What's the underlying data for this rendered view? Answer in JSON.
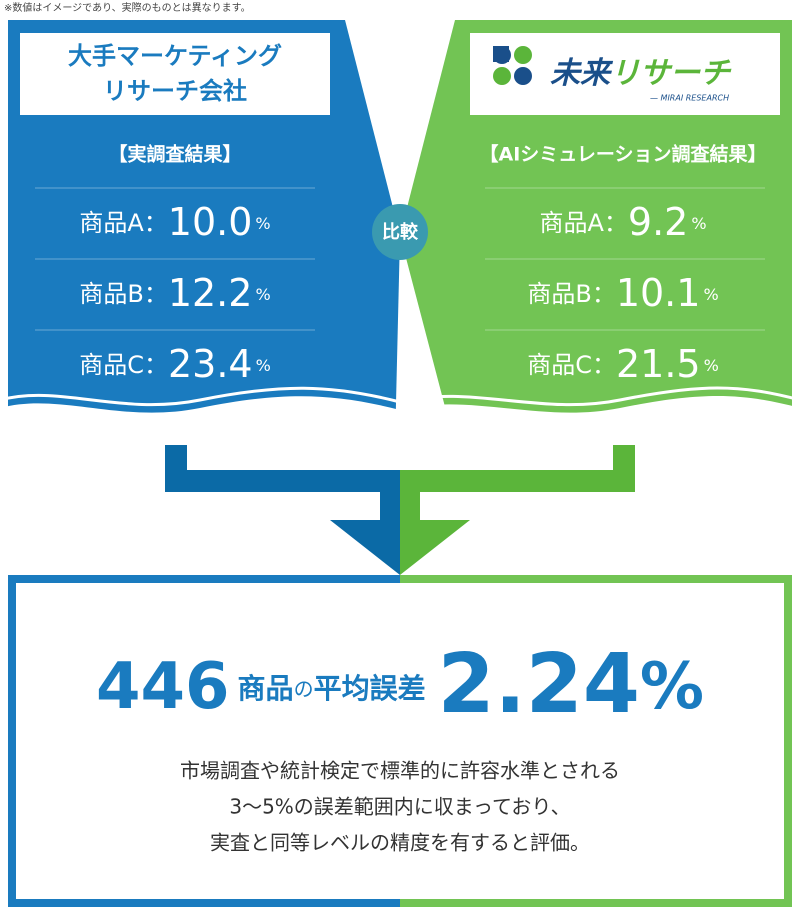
{
  "note": "※数値はイメージであり、実際のものとは異なります。",
  "left": {
    "company": [
      "大手マーケティング",
      "リサーチ会社"
    ],
    "heading": "【実調査結果】",
    "items": [
      {
        "label": "商品A：",
        "value": "10.0",
        "unit": "%"
      },
      {
        "label": "商品B：",
        "value": "12.2",
        "unit": "%"
      },
      {
        "label": "商品C：",
        "value": "23.4",
        "unit": "%"
      }
    ]
  },
  "compare": "比較",
  "right": {
    "logo": {
      "name": [
        "未来",
        "リサーチ"
      ],
      "sub": "— MIRAI RESEARCH"
    },
    "heading": "【AIシミュレーション調査結果】",
    "items": [
      {
        "label": "商品A：",
        "value": "9.2",
        "unit": "%"
      },
      {
        "label": "商品B：",
        "value": "10.1",
        "unit": "%"
      },
      {
        "label": "商品C：",
        "value": "21.5",
        "unit": "%"
      }
    ]
  },
  "result": {
    "count": "446",
    "count_label": "商品",
    "particle": "の",
    "metric": "平均誤差",
    "value": "2.24",
    "unit": "%",
    "description": [
      "市場調査や統計検定で標準的に許容水準とされる",
      "3〜5%の誤差範囲内に収まっており、",
      "実査と同等レベルの精度を有すると評価。"
    ]
  }
}
